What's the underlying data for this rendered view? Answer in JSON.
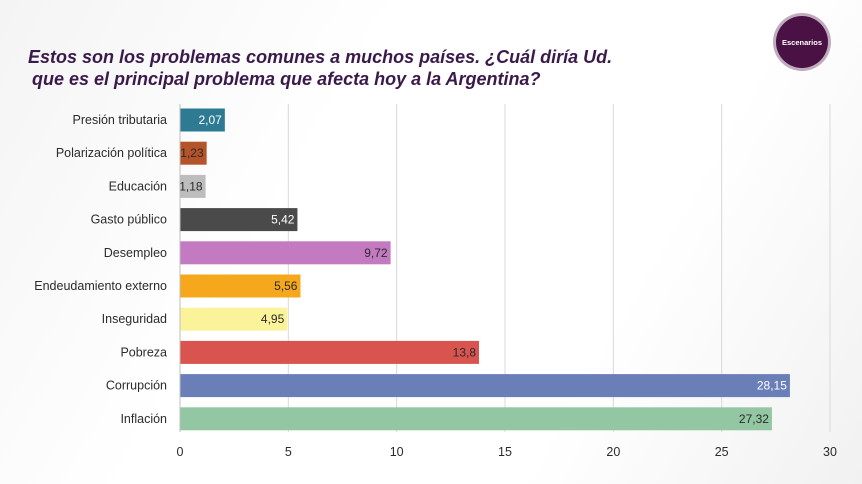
{
  "header": {
    "title_line1": "Estos son los problemas comunes a muchos países. ¿Cuál diría Ud.",
    "title_line2": "que es el principal problema que afecta hoy a la Argentina?",
    "logo_text": "Escenarios"
  },
  "chart_data": {
    "type": "bar",
    "orientation": "horizontal",
    "title": "Estos son los problemas comunes a muchos países. ¿Cuál diría Ud. que es el principal problema que afecta hoy a la Argentina?",
    "categories": [
      "Presión tributaria",
      "Polarización política",
      "Educación",
      "Gasto público",
      "Desempleo",
      "Endeudamiento externo",
      "Inseguridad",
      "Pobreza",
      "Corrupción",
      "Inflación"
    ],
    "values": [
      2.07,
      1.23,
      1.18,
      5.42,
      9.72,
      5.56,
      4.95,
      13.8,
      28.15,
      27.32
    ],
    "value_labels": [
      "2,07",
      "1,23",
      "1,18",
      "5,42",
      "9,72",
      "5,56",
      "4,95",
      "13,8",
      "28,15",
      "27,32"
    ],
    "colors": [
      "#2f7a93",
      "#b5532b",
      "#bdbdbd",
      "#4a4a4a",
      "#c47ac0",
      "#f5a81c",
      "#fbf39a",
      "#d9534f",
      "#6a7fb8",
      "#93c7a3"
    ],
    "label_colors": [
      "#ffffff",
      "#2b2b2b",
      "#2b2b2b",
      "#ffffff",
      "#2b2b2b",
      "#2b2b2b",
      "#2b2b2b",
      "#2b2b2b",
      "#ffffff",
      "#2b2b2b"
    ],
    "xlim": [
      0,
      30
    ],
    "x_ticks": [
      0,
      5,
      10,
      15,
      20,
      25,
      30
    ],
    "x_tick_labels": [
      "0",
      "5",
      "10",
      "15",
      "20",
      "25",
      "30"
    ],
    "grid": "vertical",
    "legend": "none"
  }
}
